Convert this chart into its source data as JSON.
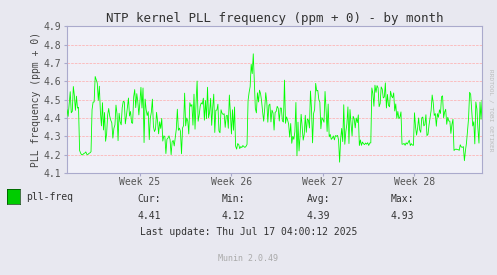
{
  "title": "NTP kernel PLL frequency (ppm + 0) - by month",
  "ylabel": "PLL frequency (ppm + 0)",
  "xlabel_ticks": [
    "Week 25",
    "Week 26",
    "Week 27",
    "Week 28"
  ],
  "ylim": [
    4.1,
    4.9
  ],
  "yticks": [
    4.1,
    4.2,
    4.3,
    4.4,
    4.5,
    4.6,
    4.7,
    4.8,
    4.9
  ],
  "line_color": "#00ff00",
  "bg_color": "#e8e8f0",
  "plot_bg_color": "#f0f0f8",
  "grid_color": "#ffaaaa",
  "legend_label": "pll-freq",
  "legend_color": "#00cc00",
  "stats_cur": "4.41",
  "stats_min": "4.12",
  "stats_avg": "4.39",
  "stats_max": "4.93",
  "last_update": "Last update: Thu Jul 17 04:00:12 2025",
  "munin_version": "Munin 2.0.49",
  "rrdtool_label": "RRDTOOL / TOBI OETIKER",
  "title_fontsize": 9,
  "axis_label_fontsize": 7,
  "tick_fontsize": 7,
  "stats_fontsize": 7,
  "munin_fontsize": 6,
  "n_points": 400,
  "seed": 42
}
